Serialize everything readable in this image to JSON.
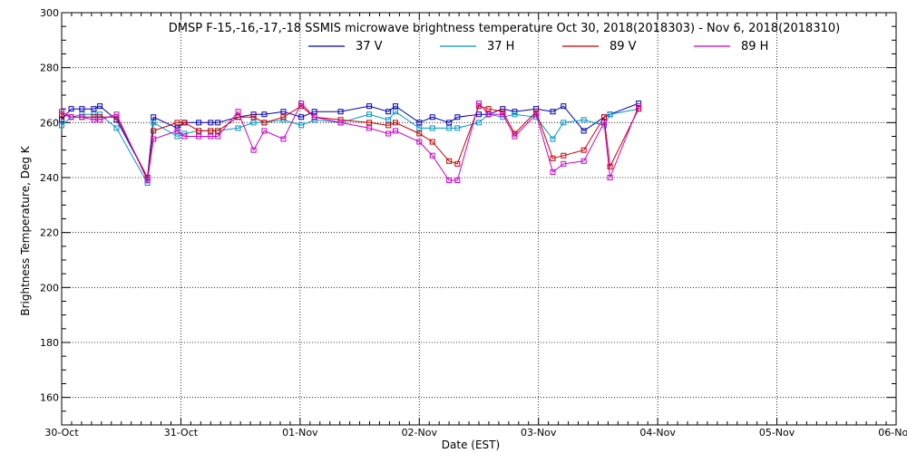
{
  "chart_data": {
    "type": "line",
    "title": "DMSP F-15,-16,-17,-18 SSMIS microwave brightness temperature Oct 30, 2018(2018303) - Nov  6, 2018(2018310)",
    "xlabel": "Date (EST)",
    "ylabel": "Brightness Temperature, Deg K",
    "xlim": [
      0,
      7
    ],
    "ylim": [
      150,
      300
    ],
    "grid": true,
    "legend_position": "top-center",
    "x_tick_labels": [
      "30-Oct",
      "31-Oct",
      "01-Nov",
      "02-Nov",
      "03-Nov",
      "04-Nov",
      "05-Nov",
      "06-Nov"
    ],
    "y_ticks": [
      160,
      180,
      200,
      220,
      240,
      260,
      280,
      300
    ],
    "series": [
      {
        "name": "37 V",
        "color": "#0000b4",
        "x": [
          0.0,
          0.08,
          0.17,
          0.27,
          0.32,
          0.46,
          0.72,
          0.77,
          0.97,
          1.03,
          1.15,
          1.25,
          1.31,
          1.48,
          1.61,
          1.7,
          1.86,
          2.01,
          2.12,
          2.34,
          2.58,
          2.74,
          2.8,
          3.0,
          3.11,
          3.25,
          3.32,
          3.5,
          3.58,
          3.7,
          3.8,
          3.98,
          4.12,
          4.21,
          4.38,
          4.55,
          4.6,
          4.84
        ],
        "values": [
          261,
          265,
          265,
          265,
          266,
          261,
          240,
          262,
          258,
          260,
          260,
          260,
          260,
          262,
          263,
          263,
          264,
          262,
          264,
          264,
          266,
          264,
          266,
          260,
          262,
          260,
          262,
          263,
          263,
          265,
          264,
          265,
          264,
          266,
          257,
          262,
          263,
          267
        ]
      },
      {
        "name": "37 H",
        "color": "#0096c8",
        "x": [
          0.0,
          0.08,
          0.17,
          0.27,
          0.32,
          0.46,
          0.72,
          0.77,
          0.97,
          1.03,
          1.15,
          1.25,
          1.31,
          1.48,
          1.61,
          1.7,
          1.86,
          2.01,
          2.12,
          2.34,
          2.58,
          2.74,
          2.8,
          3.0,
          3.11,
          3.25,
          3.32,
          3.5,
          3.58,
          3.7,
          3.8,
          3.98,
          4.12,
          4.21,
          4.38,
          4.55,
          4.6,
          4.84
        ],
        "values": [
          259,
          262,
          263,
          263,
          263,
          258,
          238,
          260,
          255,
          256,
          257,
          257,
          257,
          258,
          260,
          260,
          261,
          259,
          261,
          260,
          263,
          261,
          264,
          258,
          258,
          258,
          258,
          260,
          263,
          262,
          263,
          262,
          254,
          260,
          261,
          259,
          263,
          265
        ]
      },
      {
        "name": "89 V",
        "color": "#c80000",
        "x": [
          0.0,
          0.08,
          0.17,
          0.27,
          0.32,
          0.46,
          0.72,
          0.77,
          0.97,
          1.03,
          1.15,
          1.25,
          1.31,
          1.48,
          1.61,
          1.7,
          1.86,
          2.01,
          2.12,
          2.34,
          2.58,
          2.74,
          2.8,
          3.0,
          3.11,
          3.25,
          3.32,
          3.5,
          3.58,
          3.7,
          3.8,
          3.98,
          4.12,
          4.21,
          4.38,
          4.55,
          4.6,
          4.84
        ],
        "values": [
          263,
          262,
          262,
          262,
          262,
          262,
          240,
          257,
          260,
          260,
          257,
          257,
          257,
          262,
          262,
          260,
          262,
          266,
          262,
          261,
          260,
          259,
          260,
          256,
          253,
          246,
          245,
          266,
          265,
          264,
          256,
          264,
          247,
          248,
          250,
          262,
          244,
          265
        ]
      },
      {
        "name": "89 H",
        "color": "#c800c8",
        "x": [
          0.0,
          0.08,
          0.17,
          0.27,
          0.32,
          0.46,
          0.72,
          0.77,
          0.97,
          1.03,
          1.15,
          1.25,
          1.31,
          1.48,
          1.61,
          1.7,
          1.86,
          2.01,
          2.12,
          2.34,
          2.58,
          2.74,
          2.8,
          3.0,
          3.11,
          3.25,
          3.32,
          3.5,
          3.58,
          3.7,
          3.8,
          3.98,
          4.12,
          4.21,
          4.38,
          4.55,
          4.6,
          4.84
        ],
        "values": [
          264,
          262,
          262,
          261,
          261,
          263,
          239,
          254,
          257,
          255,
          255,
          255,
          255,
          264,
          250,
          257,
          254,
          267,
          262,
          260,
          258,
          256,
          257,
          253,
          248,
          239,
          239,
          267,
          263,
          263,
          255,
          263,
          242,
          245,
          246,
          260,
          240,
          266
        ]
      }
    ]
  }
}
